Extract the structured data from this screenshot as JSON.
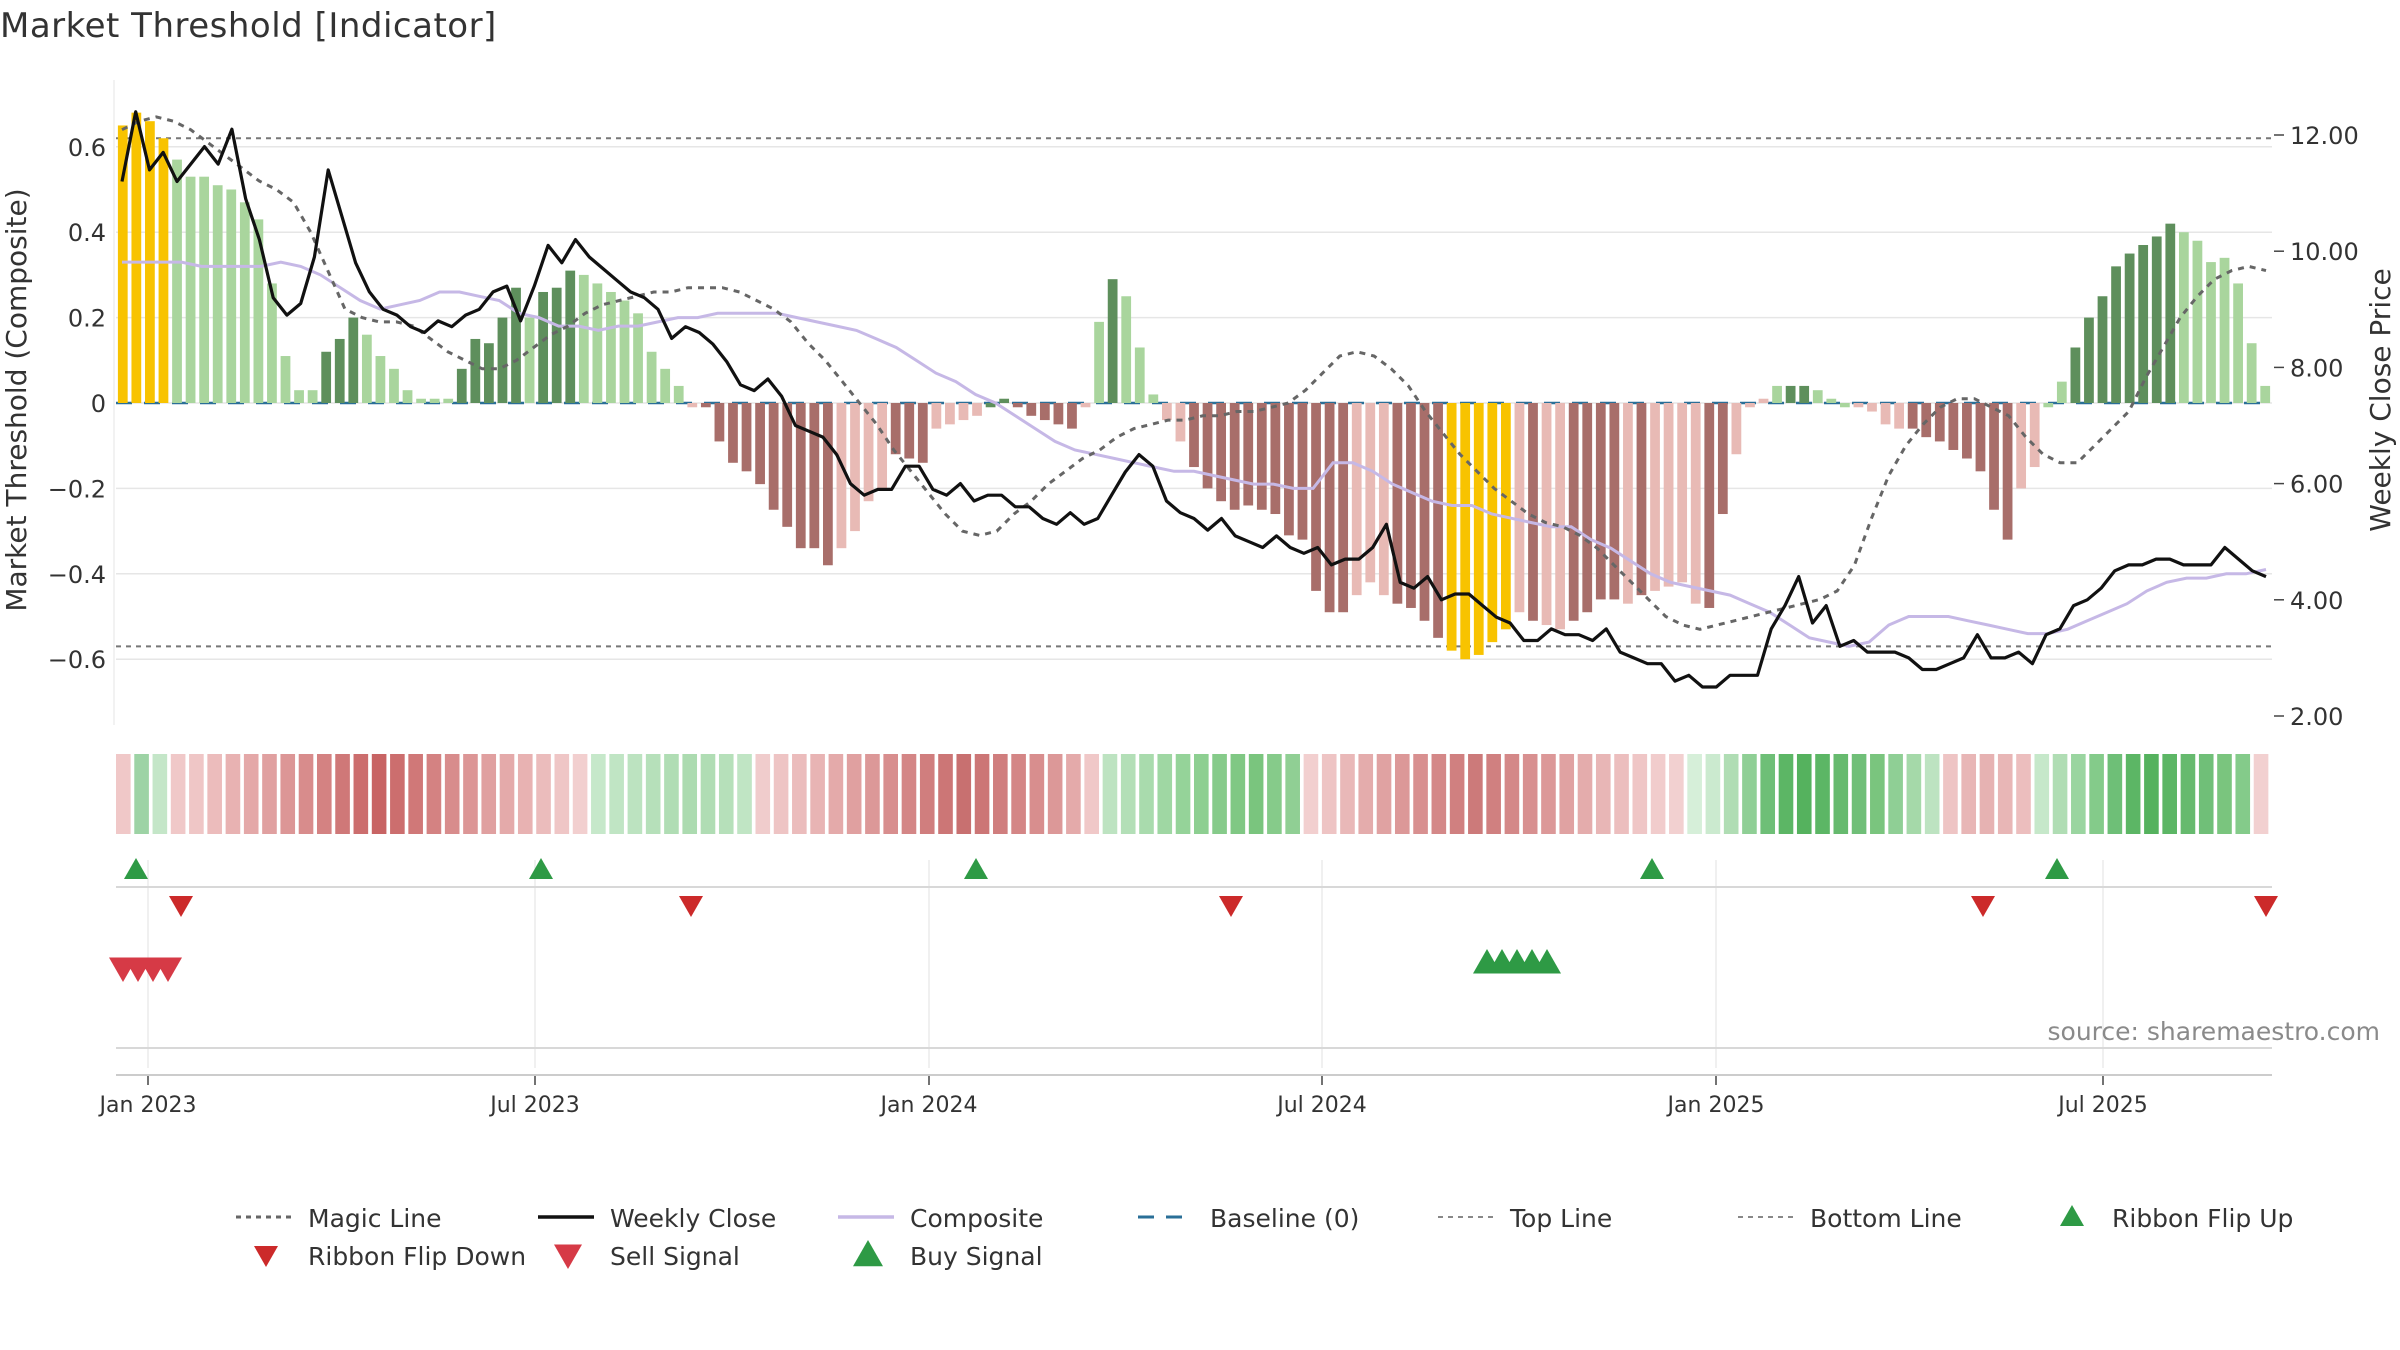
{
  "title": "Market Threshold [Indicator]",
  "source": "source: sharemaestro.com",
  "colors": {
    "gold": "#f8c300",
    "dark_green": "#5e8f5c",
    "light_green": "#a9d59d",
    "dark_red": "#a86e6a",
    "light_red": "#e8bab5",
    "close": "#111111",
    "composite": "#c6b8e6",
    "magic": "#666666",
    "baseline": "#2a6f97",
    "buy": "#2e9a45",
    "sell": "#d63a46"
  },
  "chart_data": {
    "type": "bar",
    "title": "Market Threshold [Indicator]",
    "ylabel": "Market Threshold (Composite)",
    "y2label": "Weekly Close Price",
    "ylim": [
      -0.75,
      0.75
    ],
    "y2lim": [
      2.0,
      12.0
    ],
    "yticks": [
      "0.6",
      "0.4",
      "0.2",
      "0",
      "−0.2",
      "−0.4",
      "−0.6"
    ],
    "y2ticks": [
      "12.00",
      "10.00",
      "8.00",
      "6.00",
      "4.00",
      "2.00"
    ],
    "xticks": [
      "Jan 2023",
      "Jul 2023",
      "Jan 2024",
      "Jul 2024",
      "Jan 2025",
      "Jul 2025"
    ],
    "top_line": 0.62,
    "bottom_line": -0.57,
    "bars": [
      0.65,
      0.68,
      0.66,
      0.62,
      0.57,
      0.53,
      0.53,
      0.51,
      0.5,
      0.47,
      0.43,
      0.28,
      0.11,
      0.03,
      0.03,
      0.12,
      0.15,
      0.2,
      0.16,
      0.11,
      0.08,
      0.03,
      0.01,
      0.01,
      0.01,
      0.08,
      0.15,
      0.14,
      0.2,
      0.27,
      0.2,
      0.26,
      0.27,
      0.31,
      0.3,
      0.28,
      0.26,
      0.24,
      0.21,
      0.12,
      0.08,
      0.04,
      -0.01,
      -0.01,
      -0.09,
      -0.14,
      -0.16,
      -0.19,
      -0.25,
      -0.29,
      -0.34,
      -0.34,
      -0.38,
      -0.34,
      -0.3,
      -0.23,
      -0.2,
      -0.12,
      -0.13,
      -0.14,
      -0.06,
      -0.05,
      -0.04,
      -0.03,
      -0.01,
      0.01,
      -0.01,
      -0.03,
      -0.04,
      -0.05,
      -0.06,
      -0.01,
      0.19,
      0.29,
      0.25,
      0.13,
      0.02,
      -0.04,
      -0.09,
      -0.15,
      -0.2,
      -0.23,
      -0.25,
      -0.24,
      -0.25,
      -0.26,
      -0.31,
      -0.32,
      -0.44,
      -0.49,
      -0.49,
      -0.45,
      -0.42,
      -0.45,
      -0.47,
      -0.48,
      -0.51,
      -0.55,
      -0.58,
      -0.6,
      -0.59,
      -0.56,
      -0.53,
      -0.49,
      -0.51,
      -0.52,
      -0.53,
      -0.51,
      -0.49,
      -0.46,
      -0.46,
      -0.47,
      -0.45,
      -0.44,
      -0.43,
      -0.42,
      -0.47,
      -0.48,
      -0.26,
      -0.12,
      -0.01,
      0.01,
      0.04,
      0.04,
      0.04,
      0.03,
      0.01,
      -0.01,
      -0.01,
      -0.02,
      -0.05,
      -0.06,
      -0.06,
      -0.08,
      -0.09,
      -0.11,
      -0.13,
      -0.16,
      -0.25,
      -0.32,
      -0.2,
      -0.15,
      -0.01,
      0.05,
      0.13,
      0.2,
      0.25,
      0.32,
      0.35,
      0.37,
      0.39,
      0.42,
      0.4,
      0.38,
      0.33,
      0.34,
      0.28,
      0.14,
      0.04
    ],
    "bar_colors": [
      "gold",
      "gold",
      "gold",
      "gold",
      "lg",
      "lg",
      "lg",
      "lg",
      "lg",
      "lg",
      "lg",
      "lg",
      "lg",
      "lg",
      "lg",
      "dg",
      "dg",
      "dg",
      "lg",
      "lg",
      "lg",
      "lg",
      "lg",
      "lg",
      "lg",
      "dg",
      "dg",
      "dg",
      "dg",
      "dg",
      "lg",
      "dg",
      "dg",
      "dg",
      "lg",
      "lg",
      "lg",
      "lg",
      "lg",
      "lg",
      "lg",
      "lg",
      "lr",
      "dr",
      "dr",
      "dr",
      "dr",
      "dr",
      "dr",
      "dr",
      "dr",
      "dr",
      "dr",
      "lr",
      "lr",
      "lr",
      "lr",
      "dr",
      "dr",
      "dr",
      "lr",
      "lr",
      "lr",
      "lr",
      "dg",
      "dg",
      "dr",
      "dr",
      "dr",
      "dr",
      "dr",
      "lr",
      "lg",
      "dg",
      "lg",
      "lg",
      "lg",
      "lr",
      "lr",
      "dr",
      "dr",
      "dr",
      "dr",
      "dr",
      "dr",
      "dr",
      "dr",
      "dr",
      "dr",
      "dr",
      "dr",
      "lr",
      "lr",
      "lr",
      "dr",
      "dr",
      "dr",
      "dr",
      "gold",
      "gold",
      "gold",
      "gold",
      "gold",
      "lr",
      "dr",
      "lr",
      "lr",
      "dr",
      "dr",
      "dr",
      "dr",
      "lr",
      "dr",
      "lr",
      "lr",
      "lr",
      "lr",
      "dr",
      "dr",
      "lr",
      "lr",
      "lr",
      "lg",
      "dg",
      "dg",
      "lg",
      "lg",
      "lg",
      "lr",
      "lr",
      "lr",
      "lr",
      "dr",
      "dr",
      "dr",
      "dr",
      "dr",
      "dr",
      "dr",
      "dr",
      "lr",
      "lr",
      "lg",
      "lg",
      "dg",
      "dg",
      "dg",
      "dg",
      "dg",
      "dg",
      "dg",
      "dg",
      "lg",
      "lg",
      "lg",
      "lg",
      "lg",
      "lg",
      "lg"
    ],
    "weekly_close": [
      11.2,
      12.4,
      11.4,
      11.7,
      11.2,
      11.5,
      11.8,
      11.5,
      12.1,
      10.9,
      10.2,
      9.2,
      8.9,
      9.1,
      9.9,
      11.4,
      10.6,
      9.8,
      9.3,
      9.0,
      8.9,
      8.7,
      8.6,
      8.8,
      8.7,
      8.9,
      9.0,
      9.3,
      9.4,
      8.8,
      9.4,
      10.1,
      9.8,
      10.2,
      9.9,
      9.7,
      9.5,
      9.3,
      9.2,
      9.0,
      8.5,
      8.7,
      8.6,
      8.4,
      8.1,
      7.7,
      7.6,
      7.8,
      7.5,
      7.0,
      6.9,
      6.8,
      6.5,
      6.0,
      5.8,
      5.9,
      5.9,
      6.3,
      6.3,
      5.9,
      5.8,
      6.0,
      5.7,
      5.8,
      5.8,
      5.6,
      5.6,
      5.4,
      5.3,
      5.5,
      5.3,
      5.4,
      5.8,
      6.2,
      6.5,
      6.3,
      5.7,
      5.5,
      5.4,
      5.2,
      5.4,
      5.1,
      5.0,
      4.9,
      5.1,
      4.9,
      4.8,
      4.9,
      4.6,
      4.7,
      4.7,
      4.9,
      5.3,
      4.3,
      4.2,
      4.4,
      4.0,
      4.1,
      4.1,
      3.9,
      3.7,
      3.6,
      3.3,
      3.3,
      3.5,
      3.4,
      3.4,
      3.3,
      3.5,
      3.1,
      3.0,
      2.9,
      2.9,
      2.6,
      2.7,
      2.5,
      2.5,
      2.7,
      2.7,
      2.7,
      3.5,
      3.9,
      4.4,
      3.6,
      3.9,
      3.2,
      3.3,
      3.1,
      3.1,
      3.1,
      3.0,
      2.8,
      2.8,
      2.9,
      3.0,
      3.4,
      3.0,
      3.0,
      3.1,
      2.9,
      3.4,
      3.5,
      3.9,
      4.0,
      4.2,
      4.5,
      4.6,
      4.6,
      4.7,
      4.7,
      4.6,
      4.6,
      4.6,
      4.9,
      4.7,
      4.5,
      4.4
    ],
    "magic_line": [
      0.64,
      0.66,
      0.67,
      0.66,
      0.64,
      0.61,
      0.58,
      0.55,
      0.52,
      0.5,
      0.47,
      0.4,
      0.31,
      0.22,
      0.2,
      0.19,
      0.19,
      0.18,
      0.15,
      0.12,
      0.1,
      0.08,
      0.08,
      0.1,
      0.13,
      0.16,
      0.18,
      0.21,
      0.23,
      0.24,
      0.25,
      0.26,
      0.26,
      0.27,
      0.27,
      0.27,
      0.26,
      0.24,
      0.22,
      0.19,
      0.14,
      0.1,
      0.05,
      0.0,
      -0.05,
      -0.11,
      -0.16,
      -0.21,
      -0.26,
      -0.3,
      -0.31,
      -0.3,
      -0.26,
      -0.23,
      -0.19,
      -0.16,
      -0.13,
      -0.11,
      -0.08,
      -0.06,
      -0.05,
      -0.04,
      -0.04,
      -0.03,
      -0.03,
      -0.02,
      -0.02,
      -0.01,
      0.0,
      0.03,
      0.07,
      0.11,
      0.12,
      0.11,
      0.08,
      0.04,
      -0.02,
      -0.07,
      -0.12,
      -0.16,
      -0.2,
      -0.23,
      -0.26,
      -0.28,
      -0.29,
      -0.31,
      -0.34,
      -0.38,
      -0.42,
      -0.46,
      -0.5,
      -0.52,
      -0.53,
      -0.52,
      -0.51,
      -0.5,
      -0.49,
      -0.48,
      -0.47,
      -0.46,
      -0.44,
      -0.38,
      -0.27,
      -0.17,
      -0.1,
      -0.05,
      -0.01,
      0.01,
      0.01,
      -0.01,
      -0.03,
      -0.08,
      -0.12,
      -0.14,
      -0.14,
      -0.1,
      -0.06,
      -0.02,
      0.06,
      0.13,
      0.2,
      0.25,
      0.29,
      0.31,
      0.32,
      0.31
    ],
    "composite": [
      0.33,
      0.33,
      0.33,
      0.33,
      0.32,
      0.32,
      0.32,
      0.32,
      0.33,
      0.32,
      0.3,
      0.27,
      0.24,
      0.22,
      0.23,
      0.24,
      0.26,
      0.26,
      0.25,
      0.24,
      0.21,
      0.2,
      0.18,
      0.18,
      0.17,
      0.18,
      0.18,
      0.19,
      0.2,
      0.2,
      0.21,
      0.21,
      0.21,
      0.21,
      0.2,
      0.19,
      0.18,
      0.17,
      0.15,
      0.13,
      0.1,
      0.07,
      0.05,
      0.02,
      0.0,
      -0.03,
      -0.06,
      -0.09,
      -0.11,
      -0.12,
      -0.13,
      -0.14,
      -0.15,
      -0.16,
      -0.16,
      -0.17,
      -0.18,
      -0.19,
      -0.19,
      -0.2,
      -0.2,
      -0.14,
      -0.14,
      -0.16,
      -0.19,
      -0.21,
      -0.23,
      -0.24,
      -0.24,
      -0.26,
      -0.27,
      -0.28,
      -0.29,
      -0.29,
      -0.32,
      -0.34,
      -0.37,
      -0.4,
      -0.42,
      -0.43,
      -0.44,
      -0.45,
      -0.47,
      -0.49,
      -0.52,
      -0.55,
      -0.56,
      -0.57,
      -0.56,
      -0.52,
      -0.5,
      -0.5,
      -0.5,
      -0.51,
      -0.52,
      -0.53,
      -0.54,
      -0.54,
      -0.53,
      -0.51,
      -0.49,
      -0.47,
      -0.44,
      -0.42,
      -0.41,
      -0.41,
      -0.4,
      -0.4,
      -0.39
    ],
    "ribbon_colors": [
      "#f0c8c8",
      "#9dd3a5",
      "#c4e6c8",
      "#f0c8c8",
      "#efc6c6",
      "#ecbcbc",
      "#e8b2b2",
      "#e4a8a8",
      "#e0a0a0",
      "#dc9696",
      "#d88c8c",
      "#d48282",
      "#cf7878",
      "#cc6e6e",
      "#c86464",
      "#cc6e6e",
      "#d07878",
      "#d48282",
      "#d88c8c",
      "#dc9696",
      "#e0a0a0",
      "#e4aaaa",
      "#e8b2b2",
      "#ebbcbc",
      "#efc6c6",
      "#f2cfcf",
      "#c6e8ca",
      "#c0e5c4",
      "#bce3c0",
      "#b6e0ba",
      "#b0ddb4",
      "#acdbb0",
      "#b0ddb4",
      "#b6e0ba",
      "#c0e5c4",
      "#f0cccc",
      "#eec4c4",
      "#ebbcbc",
      "#e8b4b4",
      "#e4aaaa",
      "#e0a0a0",
      "#dc9898",
      "#d88e8e",
      "#d48686",
      "#d07e7e",
      "#cc7676",
      "#c87070",
      "#cc7676",
      "#d07e7e",
      "#d48686",
      "#d88e8e",
      "#dc9898",
      "#e4aaaa",
      "#f0c8c8",
      "#bde3c1",
      "#b3dfb7",
      "#a9dbad",
      "#9fd7a3",
      "#95d399",
      "#8dcf91",
      "#86cb8a",
      "#80c884",
      "#7ac57e",
      "#86cb8a",
      "#90cf94",
      "#f2cfcf",
      "#eec4c4",
      "#e9b8b8",
      "#e4acac",
      "#e0a2a2",
      "#dc9898",
      "#d89090",
      "#d48888",
      "#d08080",
      "#cc7a7a",
      "#d08080",
      "#d48888",
      "#d89090",
      "#dc9898",
      "#e0a2a2",
      "#e4acac",
      "#e8b6b6",
      "#ecbebe",
      "#efc6c6",
      "#f1cccc",
      "#f2d0d0",
      "#d6efd9",
      "#cbeacf",
      "#b0ddb4",
      "#8fcf95",
      "#6ebf77",
      "#5cb665",
      "#55b25e",
      "#5cb665",
      "#66ba6e",
      "#70bf78",
      "#7ac57e",
      "#8fcf95",
      "#a5d9a9",
      "#bde3c1",
      "#eec4c4",
      "#e8b6b6",
      "#e6b2b2",
      "#e8b6b6",
      "#ecbebe",
      "#c6e8ca",
      "#b0ddb4",
      "#9ad5a0",
      "#84cb8a",
      "#6ebf77",
      "#5cb665",
      "#55b25e",
      "#5cb665",
      "#66ba6e",
      "#70bf78",
      "#7ac57e",
      "#84cb8a",
      "#f2d0d0"
    ],
    "ribbon_flip_up": [
      "Jan 2023",
      "Jul 2023",
      "Jan 2024",
      "Jan 2025",
      "Jul 2025"
    ],
    "ribbon_flip_down": [
      "Jan 2023",
      "Jul 2023",
      "Jul 2024",
      "Jul 2025",
      "Jul 2025"
    ],
    "legend": [
      "Magic Line",
      "Weekly Close",
      "Composite",
      "Baseline (0)",
      "Top Line",
      "Bottom Line",
      "Ribbon Flip Up",
      "Ribbon Flip Down",
      "Sell Signal",
      "Buy Signal"
    ]
  }
}
